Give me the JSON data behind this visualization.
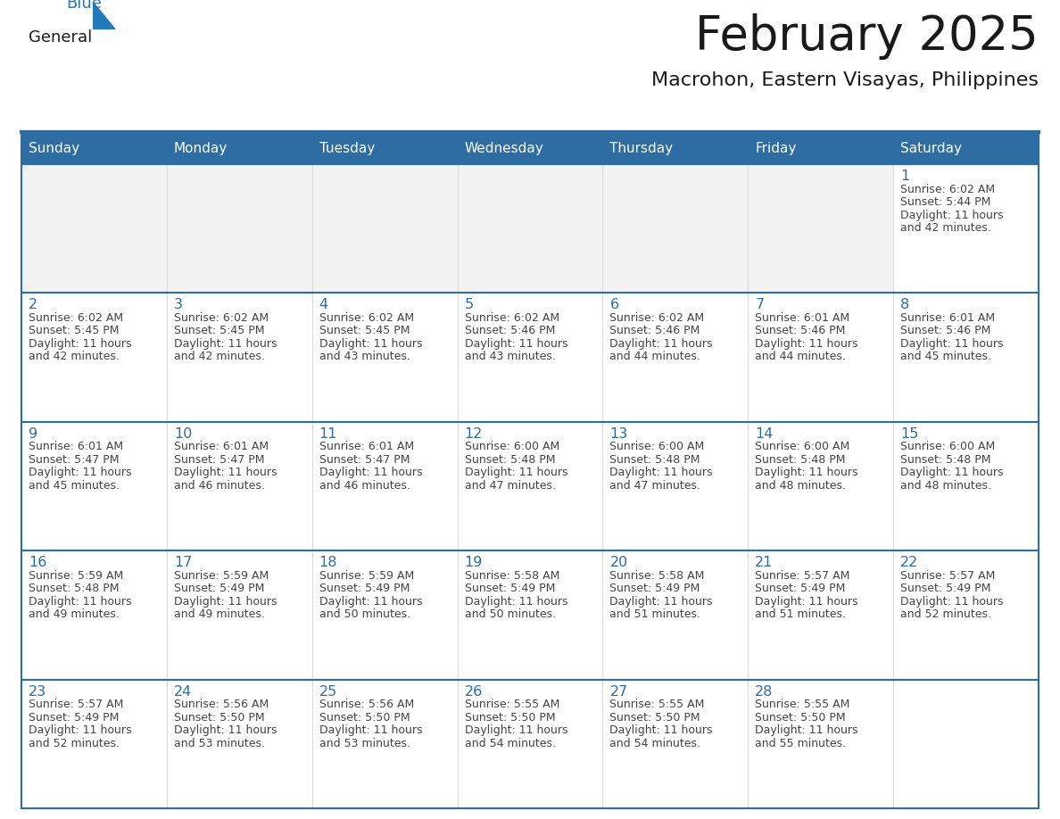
{
  "title": "February 2025",
  "subtitle": "Macrohon, Eastern Visayas, Philippines",
  "days_of_week": [
    "Sunday",
    "Monday",
    "Tuesday",
    "Wednesday",
    "Thursday",
    "Friday",
    "Saturday"
  ],
  "header_bg": "#2E6DA4",
  "header_text": "#FFFFFF",
  "cell_bg": "#FFFFFF",
  "cell_bg_alt": "#F2F2F2",
  "day_num_color": "#2E6DA4",
  "text_color": "#444444",
  "line_color": "#2E6DA4",
  "calendar": [
    [
      null,
      null,
      null,
      null,
      null,
      null,
      1
    ],
    [
      2,
      3,
      4,
      5,
      6,
      7,
      8
    ],
    [
      9,
      10,
      11,
      12,
      13,
      14,
      15
    ],
    [
      16,
      17,
      18,
      19,
      20,
      21,
      22
    ],
    [
      23,
      24,
      25,
      26,
      27,
      28,
      null
    ]
  ],
  "sunrise": {
    "1": "6:02 AM",
    "2": "6:02 AM",
    "3": "6:02 AM",
    "4": "6:02 AM",
    "5": "6:02 AM",
    "6": "6:02 AM",
    "7": "6:01 AM",
    "8": "6:01 AM",
    "9": "6:01 AM",
    "10": "6:01 AM",
    "11": "6:01 AM",
    "12": "6:00 AM",
    "13": "6:00 AM",
    "14": "6:00 AM",
    "15": "6:00 AM",
    "16": "5:59 AM",
    "17": "5:59 AM",
    "18": "5:59 AM",
    "19": "5:58 AM",
    "20": "5:58 AM",
    "21": "5:57 AM",
    "22": "5:57 AM",
    "23": "5:57 AM",
    "24": "5:56 AM",
    "25": "5:56 AM",
    "26": "5:55 AM",
    "27": "5:55 AM",
    "28": "5:55 AM"
  },
  "sunset": {
    "1": "5:44 PM",
    "2": "5:45 PM",
    "3": "5:45 PM",
    "4": "5:45 PM",
    "5": "5:46 PM",
    "6": "5:46 PM",
    "7": "5:46 PM",
    "8": "5:46 PM",
    "9": "5:47 PM",
    "10": "5:47 PM",
    "11": "5:47 PM",
    "12": "5:48 PM",
    "13": "5:48 PM",
    "14": "5:48 PM",
    "15": "5:48 PM",
    "16": "5:48 PM",
    "17": "5:49 PM",
    "18": "5:49 PM",
    "19": "5:49 PM",
    "20": "5:49 PM",
    "21": "5:49 PM",
    "22": "5:49 PM",
    "23": "5:49 PM",
    "24": "5:50 PM",
    "25": "5:50 PM",
    "26": "5:50 PM",
    "27": "5:50 PM",
    "28": "5:50 PM"
  },
  "daylight": {
    "1": [
      "11 hours",
      "and 42 minutes."
    ],
    "2": [
      "11 hours",
      "and 42 minutes."
    ],
    "3": [
      "11 hours",
      "and 42 minutes."
    ],
    "4": [
      "11 hours",
      "and 43 minutes."
    ],
    "5": [
      "11 hours",
      "and 43 minutes."
    ],
    "6": [
      "11 hours",
      "and 44 minutes."
    ],
    "7": [
      "11 hours",
      "and 44 minutes."
    ],
    "8": [
      "11 hours",
      "and 45 minutes."
    ],
    "9": [
      "11 hours",
      "and 45 minutes."
    ],
    "10": [
      "11 hours",
      "and 46 minutes."
    ],
    "11": [
      "11 hours",
      "and 46 minutes."
    ],
    "12": [
      "11 hours",
      "and 47 minutes."
    ],
    "13": [
      "11 hours",
      "and 47 minutes."
    ],
    "14": [
      "11 hours",
      "and 48 minutes."
    ],
    "15": [
      "11 hours",
      "and 48 minutes."
    ],
    "16": [
      "11 hours",
      "and 49 minutes."
    ],
    "17": [
      "11 hours",
      "and 49 minutes."
    ],
    "18": [
      "11 hours",
      "and 50 minutes."
    ],
    "19": [
      "11 hours",
      "and 50 minutes."
    ],
    "20": [
      "11 hours",
      "and 51 minutes."
    ],
    "21": [
      "11 hours",
      "and 51 minutes."
    ],
    "22": [
      "11 hours",
      "and 52 minutes."
    ],
    "23": [
      "11 hours",
      "and 52 minutes."
    ],
    "24": [
      "11 hours",
      "and 53 minutes."
    ],
    "25": [
      "11 hours",
      "and 53 minutes."
    ],
    "26": [
      "11 hours",
      "and 54 minutes."
    ],
    "27": [
      "11 hours",
      "and 54 minutes."
    ],
    "28": [
      "11 hours",
      "and 55 minutes."
    ]
  },
  "logo_text1": "General",
  "logo_text2": "Blue",
  "logo_color1": "#1a1a1a",
  "logo_color2": "#2479BD",
  "logo_triangle_color": "#2479BD",
  "title_color": "#1a1a1a",
  "subtitle_color": "#1a1a1a"
}
